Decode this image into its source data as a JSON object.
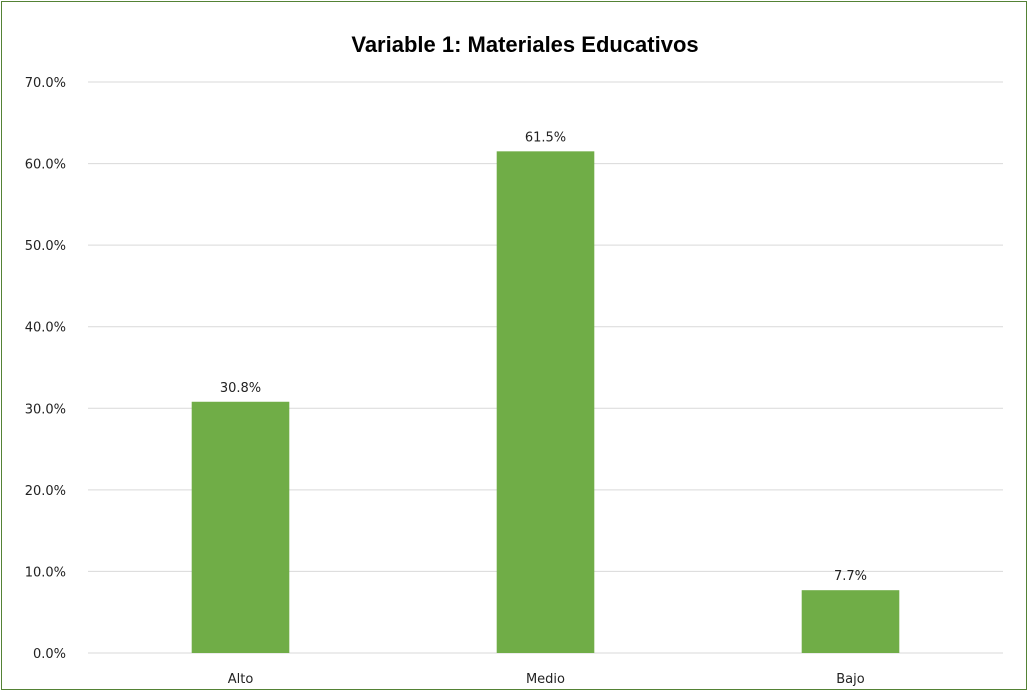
{
  "chart_data": {
    "type": "bar",
    "title": "Variable 1: Materiales Educativos",
    "categories": [
      "Alto",
      "Medio",
      "Bajo"
    ],
    "values": [
      30.8,
      61.5,
      7.7
    ],
    "data_labels": [
      "30.8%",
      "61.5%",
      "7.7%"
    ],
    "y_ticks": [
      "0.0%",
      "10.0%",
      "20.0%",
      "30.0%",
      "40.0%",
      "50.0%",
      "60.0%",
      "70.0%"
    ],
    "ylim": [
      0,
      70
    ],
    "grid": true,
    "legend": "none",
    "bar_color": "#70AD47",
    "border_color": "#548235",
    "gridline_color": "#D9D9D9"
  }
}
